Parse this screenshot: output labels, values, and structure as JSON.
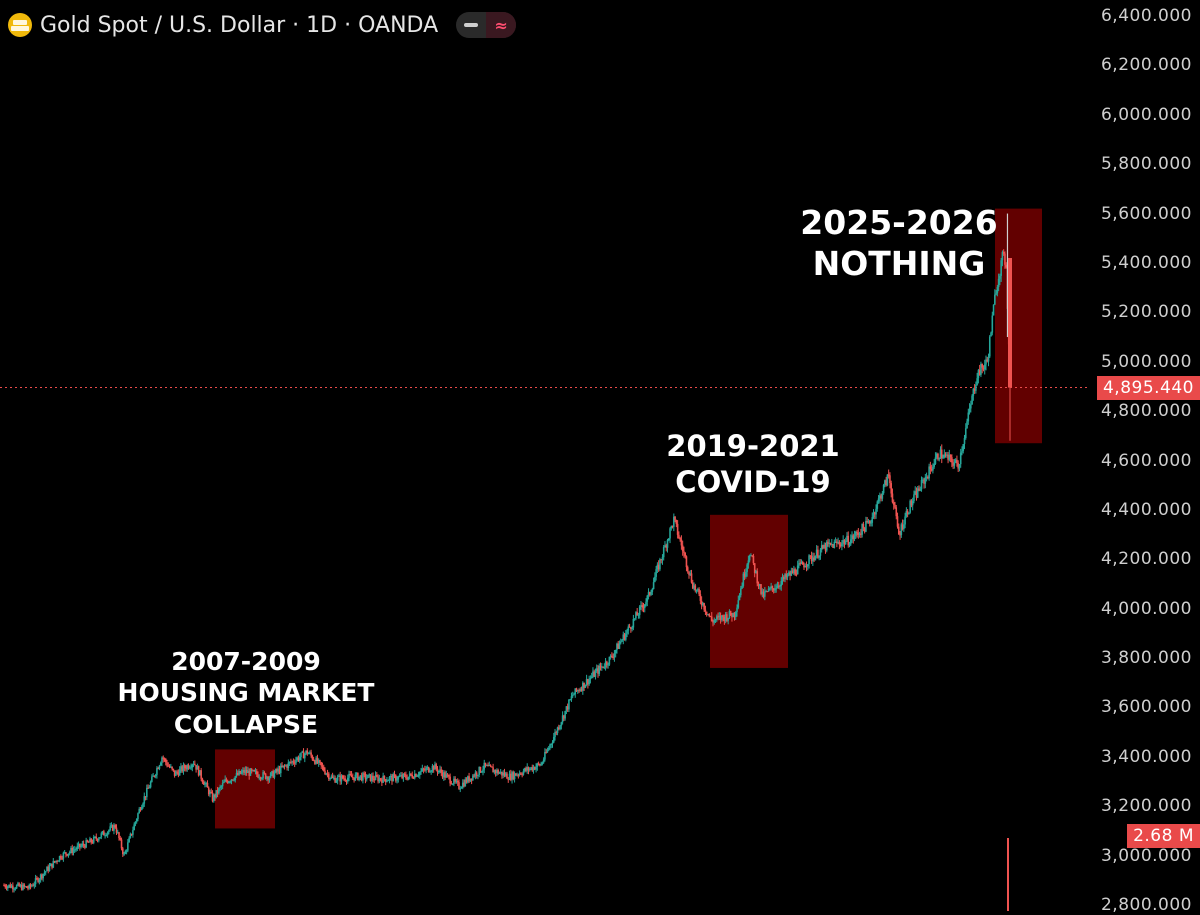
{
  "header": {
    "title": "Gold Spot / U.S. Dollar · 1D · OANDA",
    "logo_icon": "gold-bars-icon",
    "indicator_buttons": [
      "minus-icon",
      "wave-icon"
    ]
  },
  "colors": {
    "background": "#000000",
    "up": "#26a69a",
    "down": "#ef5350",
    "highlight_box": "#8b0000",
    "price_line": "#e94a4a",
    "axis_text": "#cfcfcf"
  },
  "price_axis": {
    "ticks": [
      "6,400.000",
      "6,200.000",
      "6,000.000",
      "5,800.000",
      "5,600.000",
      "5,400.000",
      "5,200.000",
      "5,000.000",
      "4,800.000",
      "4,600.000",
      "4,400.000",
      "4,200.000",
      "4,000.000",
      "3,800.000",
      "3,600.000",
      "3,400.000",
      "3,200.000",
      "3,000.000",
      "2,800.000"
    ],
    "current_price": "4,895.440",
    "volume_label": "2.68 M"
  },
  "annotations": [
    {
      "lines": [
        "2007-2009",
        "HOUSING MARKET",
        "COLLAPSE"
      ]
    },
    {
      "lines": [
        "2019-2021",
        "COVID-19"
      ]
    },
    {
      "lines": [
        "2025-2026",
        "NOTHING"
      ]
    }
  ],
  "chart_data": {
    "type": "candlestick",
    "instrument": "Gold Spot / U.S. Dollar",
    "interval": "1D",
    "source": "OANDA",
    "ylim": [
      2800,
      6400
    ],
    "current_price": 4895.44,
    "path_keypoints": [
      {
        "i": 0,
        "price": 2880
      },
      {
        "i": 20,
        "price": 2870
      },
      {
        "i": 45,
        "price": 3000
      },
      {
        "i": 70,
        "price": 3060
      },
      {
        "i": 88,
        "price": 3120
      },
      {
        "i": 95,
        "price": 3000
      },
      {
        "i": 108,
        "price": 3200
      },
      {
        "i": 125,
        "price": 3400
      },
      {
        "i": 135,
        "price": 3330
      },
      {
        "i": 150,
        "price": 3380
      },
      {
        "i": 165,
        "price": 3230
      },
      {
        "i": 175,
        "price": 3300
      },
      {
        "i": 190,
        "price": 3340
      },
      {
        "i": 210,
        "price": 3320
      },
      {
        "i": 240,
        "price": 3420
      },
      {
        "i": 260,
        "price": 3310
      },
      {
        "i": 280,
        "price": 3320
      },
      {
        "i": 300,
        "price": 3310
      },
      {
        "i": 320,
        "price": 3320
      },
      {
        "i": 340,
        "price": 3360
      },
      {
        "i": 360,
        "price": 3280
      },
      {
        "i": 380,
        "price": 3360
      },
      {
        "i": 400,
        "price": 3320
      },
      {
        "i": 425,
        "price": 3370
      },
      {
        "i": 450,
        "price": 3650
      },
      {
        "i": 480,
        "price": 3800
      },
      {
        "i": 510,
        "price": 4050
      },
      {
        "i": 530,
        "price": 4360
      },
      {
        "i": 545,
        "price": 4100
      },
      {
        "i": 560,
        "price": 3950
      },
      {
        "i": 578,
        "price": 3980
      },
      {
        "i": 590,
        "price": 4230
      },
      {
        "i": 600,
        "price": 4050
      },
      {
        "i": 625,
        "price": 4150
      },
      {
        "i": 650,
        "price": 4250
      },
      {
        "i": 670,
        "price": 4280
      },
      {
        "i": 685,
        "price": 4350
      },
      {
        "i": 700,
        "price": 4540
      },
      {
        "i": 708,
        "price": 4300
      },
      {
        "i": 715,
        "price": 4400
      },
      {
        "i": 740,
        "price": 4630
      },
      {
        "i": 755,
        "price": 4580
      },
      {
        "i": 770,
        "price": 4950
      },
      {
        "i": 778,
        "price": 5000
      },
      {
        "i": 785,
        "price": 5300
      },
      {
        "i": 790,
        "price": 5420
      },
      {
        "i": 793,
        "price": 5400
      },
      {
        "i": 796,
        "price": 4895
      }
    ],
    "highlighted_periods": [
      {
        "label": "2007-2009",
        "price_low": 3110,
        "price_high": 3430
      },
      {
        "label": "2019-2021",
        "price_low": 3760,
        "price_high": 4380
      },
      {
        "label": "2025-2026",
        "price_low": 4670,
        "price_high": 5620
      }
    ],
    "peak_price": 5600,
    "volume_last": "2.68 M"
  }
}
